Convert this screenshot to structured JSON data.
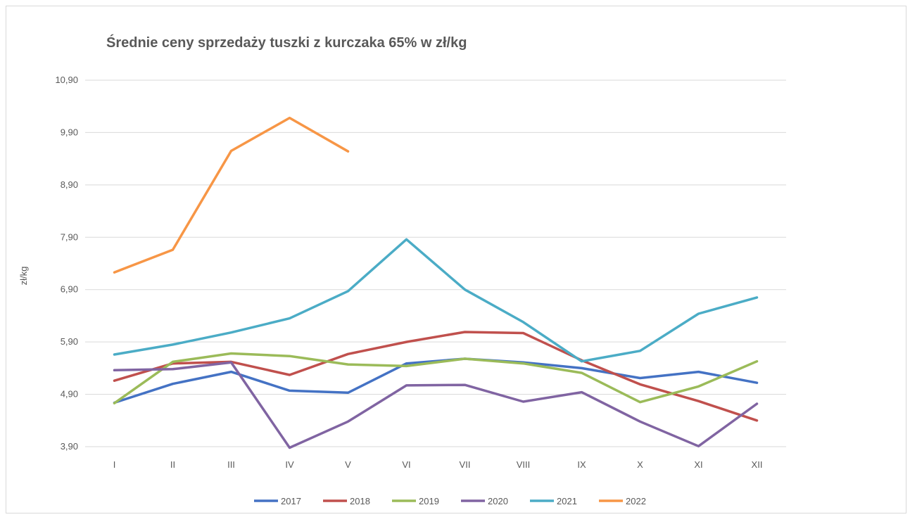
{
  "chart_data": {
    "type": "line",
    "title": "Średnie ceny sprzedaży tuszki z kurczaka 65% w zł/kg",
    "xlabel": "",
    "ylabel": "zł/kg",
    "ylim": [
      3.9,
      10.9
    ],
    "yticks": [
      "10,90",
      "9,90",
      "8,90",
      "7,90",
      "6,90",
      "5,90",
      "4,90",
      "3,90"
    ],
    "ytick_values": [
      10.9,
      9.9,
      8.9,
      7.9,
      6.9,
      5.9,
      4.9,
      3.9
    ],
    "categories": [
      "I",
      "II",
      "III",
      "IV",
      "V",
      "VI",
      "VII",
      "VIII",
      "IX",
      "X",
      "XI",
      "XII"
    ],
    "grid": true,
    "legend_position": "bottom",
    "series": [
      {
        "name": "2017",
        "color": "#4472C4",
        "values": [
          4.74,
          5.1,
          5.33,
          4.97,
          4.93,
          5.49,
          5.58,
          5.51,
          5.4,
          5.21,
          5.33,
          5.12
        ]
      },
      {
        "name": "2018",
        "color": "#C0504D",
        "values": [
          5.16,
          5.49,
          5.52,
          5.27,
          5.67,
          5.9,
          6.09,
          6.07,
          5.55,
          5.09,
          4.77,
          4.4
        ]
      },
      {
        "name": "2019",
        "color": "#9BBB59",
        "values": [
          4.73,
          5.52,
          5.68,
          5.63,
          5.47,
          5.44,
          5.58,
          5.49,
          5.31,
          4.75,
          5.05,
          5.53
        ]
      },
      {
        "name": "2020",
        "color": "#8064A2",
        "values": [
          5.36,
          5.38,
          5.51,
          3.88,
          4.38,
          5.07,
          5.08,
          4.76,
          4.94,
          4.38,
          3.91,
          4.72
        ]
      },
      {
        "name": "2021",
        "color": "#4BACC6",
        "values": [
          5.66,
          5.85,
          6.08,
          6.35,
          6.87,
          7.86,
          6.9,
          6.28,
          5.53,
          5.73,
          6.44,
          6.75
        ]
      },
      {
        "name": "2022",
        "color": "#F79646",
        "values": [
          7.23,
          7.66,
          9.55,
          10.18,
          9.54,
          null,
          null,
          null,
          null,
          null,
          null,
          null
        ]
      }
    ]
  }
}
